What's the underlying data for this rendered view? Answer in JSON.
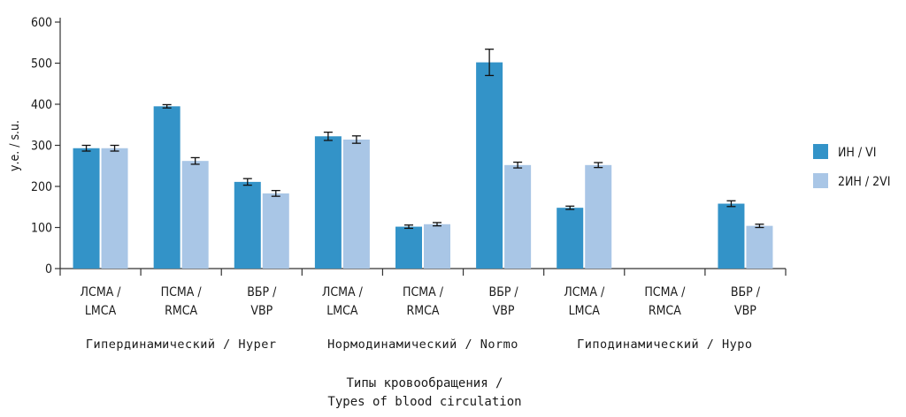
{
  "chart_data": {
    "type": "bar",
    "ylabel": "у.е. / s.u.",
    "xlabel_line1": "Типы кровообращения /",
    "xlabel_line2": "Types of blood circulation",
    "ylim": [
      0,
      600
    ],
    "yticks": [
      "0",
      "100",
      "200",
      "300",
      "400",
      "500",
      "600"
    ],
    "colors": {
      "series1": "#3393c8",
      "series2": "#a9c6e6",
      "axis": "#333333"
    },
    "categories": [
      {
        "line1": "ЛСМА /",
        "line2": "LMCA"
      },
      {
        "line1": "ПСМА /",
        "line2": "RMCA"
      },
      {
        "line1": "ВБР /",
        "line2": "VBP"
      },
      {
        "line1": "ЛСМА /",
        "line2": "LMCA"
      },
      {
        "line1": "ПСМА /",
        "line2": "RMCA"
      },
      {
        "line1": "ВБР /",
        "line2": "VBP"
      },
      {
        "line1": "ЛСМА /",
        "line2": "LMCA"
      },
      {
        "line1": "ПСМА /",
        "line2": "RMCA"
      },
      {
        "line1": "ВБР /",
        "line2": "VBP"
      }
    ],
    "groups": [
      "Гипердинамический / Hyper",
      "Нормодинамический / Normo",
      "Гиподинамический / Hypo"
    ],
    "series": [
      {
        "name": "ИН / VI",
        "values": [
          293,
          395,
          211,
          322,
          102,
          502,
          148,
          null,
          158
        ],
        "errors": [
          7,
          4,
          8,
          10,
          4,
          32,
          4,
          null,
          7
        ]
      },
      {
        "name": "2ИН / 2VI",
        "values": [
          293,
          262,
          183,
          314,
          108,
          252,
          252,
          null,
          104
        ],
        "errors": [
          7,
          8,
          7,
          9,
          4,
          7,
          6,
          null,
          4
        ]
      }
    ]
  }
}
